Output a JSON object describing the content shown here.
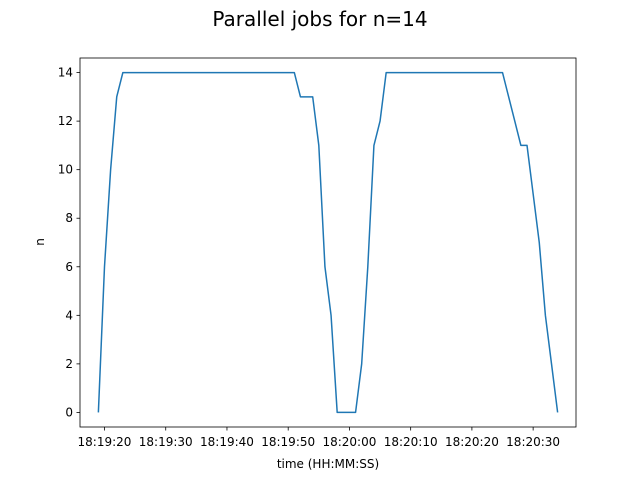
{
  "chart_data": {
    "type": "line",
    "title": "Parallel jobs for n=14",
    "xlabel": "time (HH:MM:SS)",
    "ylabel": "n",
    "x_unit": "time",
    "xlim": [
      "18:19:16",
      "18:20:37"
    ],
    "ylim": [
      -0.6,
      14.6
    ],
    "x_ticks": [
      "18:19:20",
      "18:19:30",
      "18:19:40",
      "18:19:50",
      "18:20:00",
      "18:20:10",
      "18:20:20",
      "18:20:30"
    ],
    "y_ticks": [
      0,
      2,
      4,
      6,
      8,
      10,
      12,
      14
    ],
    "grid": false,
    "line_color": "#1f77b4",
    "series": [
      {
        "x": [
          "18:19:19",
          "18:19:20",
          "18:19:21",
          "18:19:22",
          "18:19:23",
          "18:19:24",
          "18:19:25",
          "18:19:51",
          "18:19:52",
          "18:19:53",
          "18:19:54",
          "18:19:55",
          "18:19:56",
          "18:19:57",
          "18:19:58",
          "18:19:59",
          "18:20:00",
          "18:20:01",
          "18:20:02",
          "18:20:03",
          "18:20:04",
          "18:20:05",
          "18:20:06",
          "18:20:07",
          "18:20:25",
          "18:20:26",
          "18:20:27",
          "18:20:28",
          "18:20:29",
          "18:20:30",
          "18:20:31",
          "18:20:32",
          "18:20:33",
          "18:20:34"
        ],
        "y": [
          0,
          6,
          10,
          13,
          14,
          14,
          14,
          14,
          13,
          13,
          13,
          11,
          6,
          4,
          0,
          0,
          0,
          0,
          2,
          6,
          11,
          12,
          14,
          14,
          14,
          13,
          12,
          11,
          11,
          9,
          7,
          4,
          2,
          0
        ]
      }
    ]
  }
}
